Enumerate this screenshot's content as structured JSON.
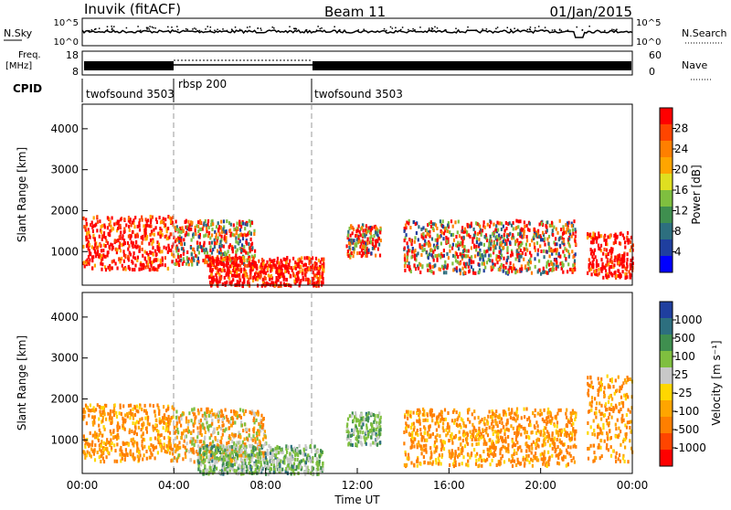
{
  "header": {
    "station": "Inuvik (fitACF)",
    "beam": "Beam 11",
    "date": "01/Jan/2015"
  },
  "noise_panel": {
    "left_label": "N.Sky",
    "right_label": "N.Search",
    "left_ticks": [
      "10^5",
      "10^0"
    ],
    "right_ticks": [
      "10^5",
      "10^0"
    ]
  },
  "freq_panel": {
    "left_label_line1": "Freq.",
    "left_label_line2": "[MHz]",
    "left_ticks": [
      "18",
      "8"
    ],
    "right_ticks": [
      "60",
      "0"
    ],
    "right_label": "Nave"
  },
  "cpid": {
    "label": "CPID",
    "segments": [
      {
        "name": "twofsound 3503",
        "start_hour": 0,
        "end_hour": 4
      },
      {
        "name": "rbsp 200",
        "start_hour": 4,
        "end_hour": 10
      },
      {
        "name": "twofsound 3503",
        "start_hour": 10,
        "end_hour": 24
      }
    ]
  },
  "x_axis": {
    "label": "Time UT",
    "ticks": [
      "00:00",
      "04:00",
      "08:00",
      "12:00",
      "16:00",
      "20:00",
      "00:00"
    ]
  },
  "chart_data": [
    {
      "type": "heatmap",
      "quantity": "Power",
      "ylabel": "Slant Range [km]",
      "xlabel": "Time UT",
      "ylim": [
        180,
        4600
      ],
      "yticks": [
        "1000",
        "2000",
        "3000",
        "4000"
      ],
      "xlim_hours": [
        0,
        24
      ],
      "colorbar": {
        "label": "Power [dB]",
        "ticks": [
          "28",
          "24",
          "20",
          "16",
          "12",
          "8",
          "4"
        ],
        "colors": [
          "#0000ff",
          "#1f3f9f",
          "#2d6f7f",
          "#3f8f4f",
          "#7fbf3f",
          "#dfdf20",
          "#ffa500",
          "#ff7f00",
          "#ff4500",
          "#ff0000"
        ]
      },
      "echo_regions": [
        {
          "t_start": 0.0,
          "t_end": 4.0,
          "r_min": 600,
          "r_max": 1900,
          "level": "high"
        },
        {
          "t_start": 4.0,
          "t_end": 7.5,
          "r_min": 700,
          "r_max": 1800,
          "level": "medium"
        },
        {
          "t_start": 5.5,
          "t_end": 10.5,
          "r_min": 200,
          "r_max": 900,
          "level": "high"
        },
        {
          "t_start": 11.5,
          "t_end": 13.0,
          "r_min": 900,
          "r_max": 1700,
          "level": "medium"
        },
        {
          "t_start": 14.0,
          "t_end": 21.5,
          "r_min": 500,
          "r_max": 1800,
          "level": "medium"
        },
        {
          "t_start": 22.0,
          "t_end": 24.0,
          "r_min": 400,
          "r_max": 1500,
          "level": "high"
        }
      ]
    },
    {
      "type": "heatmap",
      "quantity": "Velocity",
      "ylabel": "Slant Range [km]",
      "xlabel": "Time UT",
      "ylim": [
        180,
        4600
      ],
      "yticks": [
        "1000",
        "2000",
        "3000",
        "4000"
      ],
      "xlim_hours": [
        0,
        24
      ],
      "colorbar": {
        "label": "Velocity [m s⁻¹]",
        "ticks": [
          "1000",
          "500",
          "100",
          "25",
          "-25",
          "-100",
          "-500",
          "-1000"
        ],
        "colors": [
          "#ff0000",
          "#ff4500",
          "#ff7f00",
          "#ffa500",
          "#ffd700",
          "#c8c8c8",
          "#7fbf3f",
          "#3f8f4f",
          "#2d6f7f",
          "#1f3f9f"
        ]
      },
      "echo_regions": [
        {
          "t_start": 0.0,
          "t_end": 4.0,
          "r_min": 500,
          "r_max": 1900,
          "level": "negative"
        },
        {
          "t_start": 4.0,
          "t_end": 8.0,
          "r_min": 500,
          "r_max": 1800,
          "level": "mixed"
        },
        {
          "t_start": 5.0,
          "t_end": 10.5,
          "r_min": 200,
          "r_max": 900,
          "level": "positive"
        },
        {
          "t_start": 11.5,
          "t_end": 13.0,
          "r_min": 900,
          "r_max": 1700,
          "level": "positive"
        },
        {
          "t_start": 14.0,
          "t_end": 21.5,
          "r_min": 400,
          "r_max": 1800,
          "level": "negative"
        },
        {
          "t_start": 22.0,
          "t_end": 24.0,
          "r_min": 500,
          "r_max": 2600,
          "level": "negative"
        }
      ]
    }
  ]
}
